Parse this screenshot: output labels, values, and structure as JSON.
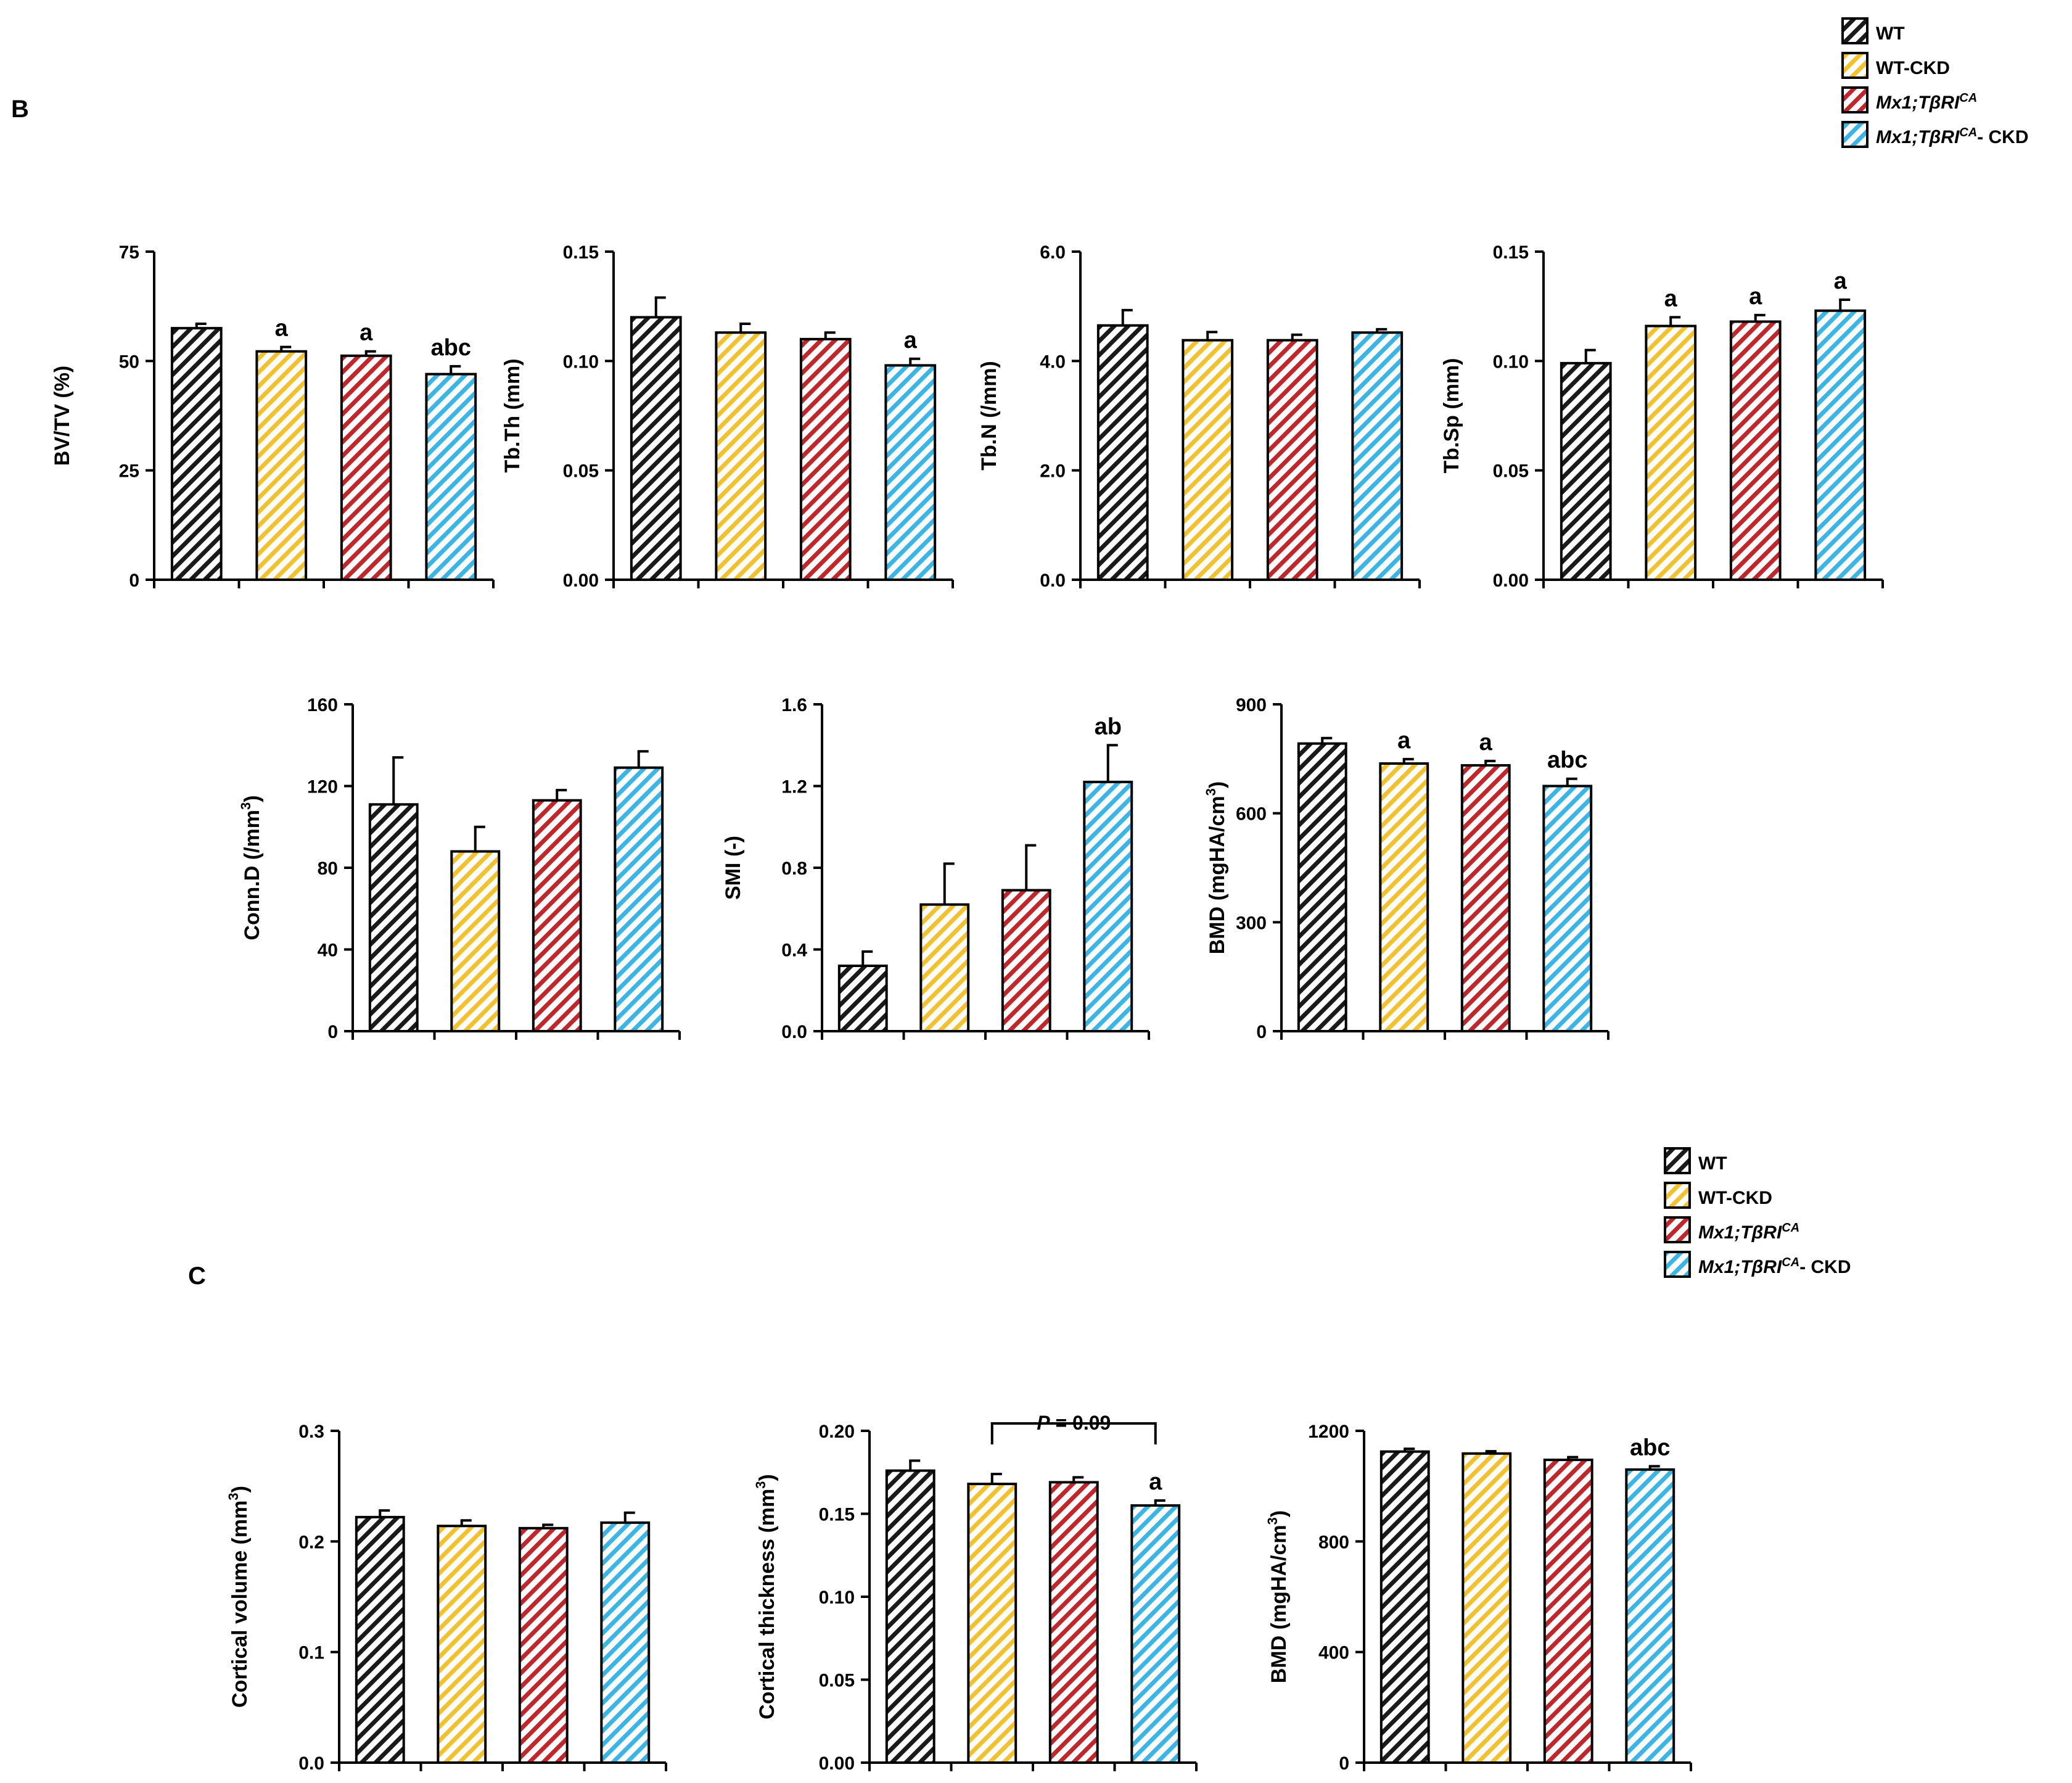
{
  "figure": {
    "panel_b": "B",
    "panel_c": "C"
  },
  "legend": {
    "items": [
      {
        "label": "WT",
        "italic_part": "",
        "sup": "",
        "suffix": "",
        "color": "#1a1a1a"
      },
      {
        "label": "WT-CKD",
        "italic_part": "",
        "sup": "",
        "suffix": "",
        "color": "#f2c12e"
      },
      {
        "label": "Mx1;TβRICA",
        "italic_part": "Mx1;TβRI",
        "sup": "CA",
        "suffix": "",
        "color": "#c0272d"
      },
      {
        "label": "Mx1;TβRICA- CKD",
        "italic_part": "Mx1;TβRI",
        "sup": "CA",
        "suffix": "- CKD",
        "color": "#3ab5e6"
      }
    ]
  },
  "colors": {
    "WT": "#1a1a1a",
    "WT-CKD": "#f2c12e",
    "Mx1": "#c0272d",
    "Mx1-CKD": "#3ab5e6"
  },
  "chart_data": [
    {
      "type": "bar",
      "panel": "B",
      "title": "",
      "ylabel": "BV/TV (%)",
      "ylim": [
        0,
        75
      ],
      "yticks": [
        "0",
        "25",
        "50",
        "75"
      ],
      "categories": [
        "WT",
        "WT-CKD",
        "Mx1;TβRICA",
        "Mx1;TβRICA- CKD"
      ],
      "values": [
        57.5,
        52.2,
        51.2,
        47.0
      ],
      "errors": [
        1.0,
        1.0,
        1.0,
        1.8
      ],
      "annotations": [
        "",
        "a",
        "a",
        "abc"
      ]
    },
    {
      "type": "bar",
      "panel": "B",
      "title": "",
      "ylabel": "Tb.Th (mm)",
      "ylim": [
        0,
        0.15
      ],
      "yticks": [
        "0.00",
        "0.05",
        "0.10",
        "0.15"
      ],
      "categories": [
        "WT",
        "WT-CKD",
        "Mx1;TβRICA",
        "Mx1;TβRICA- CKD"
      ],
      "values": [
        0.12,
        0.113,
        0.11,
        0.098
      ],
      "errors": [
        0.009,
        0.004,
        0.003,
        0.003
      ],
      "annotations": [
        "",
        "",
        "",
        "a"
      ]
    },
    {
      "type": "bar",
      "panel": "B",
      "title": "",
      "ylabel": "Tb.N (/mm)",
      "ylim": [
        0,
        6
      ],
      "yticks": [
        "0.0",
        "2.0",
        "4.0",
        "6.0"
      ],
      "categories": [
        "WT",
        "WT-CKD",
        "Mx1;TβRICA",
        "Mx1;TβRICA- CKD"
      ],
      "values": [
        4.65,
        4.38,
        4.38,
        4.52
      ],
      "errors": [
        0.28,
        0.15,
        0.1,
        0.06
      ],
      "annotations": [
        "",
        "",
        "",
        ""
      ]
    },
    {
      "type": "bar",
      "panel": "B",
      "title": "",
      "ylabel": "Tb.Sp (mm)",
      "ylim": [
        0,
        0.15
      ],
      "yticks": [
        "0.00",
        "0.05",
        "0.10",
        "0.15"
      ],
      "categories": [
        "WT",
        "WT-CKD",
        "Mx1;TβRICA",
        "Mx1;TβRICA- CKD"
      ],
      "values": [
        0.099,
        0.116,
        0.118,
        0.123
      ],
      "errors": [
        0.006,
        0.004,
        0.003,
        0.005
      ],
      "annotations": [
        "",
        "a",
        "a",
        "a"
      ]
    },
    {
      "type": "bar",
      "panel": "B",
      "title": "",
      "ylabel": "Conn.D (/mm³)",
      "ylim": [
        0,
        160
      ],
      "yticks": [
        "0",
        "40",
        "80",
        "120",
        "160"
      ],
      "categories": [
        "WT",
        "WT-CKD",
        "Mx1;TβRICA",
        "Mx1;TβRICA- CKD"
      ],
      "values": [
        111,
        88,
        113,
        129
      ],
      "errors": [
        23,
        12,
        5,
        8
      ],
      "annotations": [
        "",
        "",
        "",
        ""
      ]
    },
    {
      "type": "bar",
      "panel": "B",
      "title": "",
      "ylabel": "SMI (-)",
      "ylim": [
        0,
        1.6
      ],
      "yticks": [
        "0.0",
        "0.4",
        "0.8",
        "1.2",
        "1.6"
      ],
      "categories": [
        "WT",
        "WT-CKD",
        "Mx1;TβRICA",
        "Mx1;TβRICA- CKD"
      ],
      "values": [
        0.32,
        0.62,
        0.69,
        1.22
      ],
      "errors": [
        0.07,
        0.2,
        0.22,
        0.18
      ],
      "annotations": [
        "",
        "",
        "",
        "ab"
      ]
    },
    {
      "type": "bar",
      "panel": "B",
      "title": "",
      "ylabel": "BMD (mgHA/cm³)",
      "ylim": [
        0,
        900
      ],
      "yticks": [
        "0",
        "300",
        "600",
        "900"
      ],
      "categories": [
        "WT",
        "WT-CKD",
        "Mx1;TβRICA",
        "Mx1;TβRICA- CKD"
      ],
      "values": [
        792,
        737,
        732,
        675
      ],
      "errors": [
        15,
        12,
        12,
        20
      ],
      "annotations": [
        "",
        "a",
        "a",
        "abc"
      ]
    },
    {
      "type": "bar",
      "panel": "C",
      "title": "",
      "ylabel": "Cortical volume (mm³)",
      "ylim": [
        0,
        0.3
      ],
      "yticks": [
        "0.0",
        "0.1",
        "0.2",
        "0.3"
      ],
      "categories": [
        "WT",
        "WT-CKD",
        "Mx1;TβRICA",
        "Mx1;TβRICA- CKD"
      ],
      "values": [
        0.222,
        0.214,
        0.212,
        0.217
      ],
      "errors": [
        0.006,
        0.005,
        0.003,
        0.009
      ],
      "annotations": [
        "",
        "",
        "",
        ""
      ]
    },
    {
      "type": "bar",
      "panel": "C",
      "title": "",
      "ylabel": "Cortical thickness (mm³)",
      "ylim": [
        0,
        0.2
      ],
      "yticks": [
        "0.00",
        "0.05",
        "0.10",
        "0.15",
        "0.20"
      ],
      "categories": [
        "WT",
        "WT-CKD",
        "Mx1;TβRICA",
        "Mx1;TβRICA- CKD"
      ],
      "values": [
        0.176,
        0.168,
        0.169,
        0.155
      ],
      "errors": [
        0.006,
        0.006,
        0.003,
        0.003
      ],
      "annotations": [
        "",
        "",
        "",
        "a"
      ],
      "bracket": {
        "from": 1,
        "to": 3,
        "p_letter": "P",
        "p_rest": " = 0.09"
      }
    },
    {
      "type": "bar",
      "panel": "C",
      "title": "",
      "ylabel": "BMD (mgHA/cm³)",
      "ylim": [
        0,
        1200
      ],
      "yticks": [
        "0",
        "400",
        "800",
        "1200"
      ],
      "categories": [
        "WT",
        "WT-CKD",
        "Mx1;TβRICA",
        "Mx1;TβRICA- CKD"
      ],
      "values": [
        1125,
        1118,
        1095,
        1060
      ],
      "errors": [
        10,
        8,
        10,
        12
      ],
      "annotations": [
        "",
        "",
        "",
        "abc"
      ]
    }
  ]
}
